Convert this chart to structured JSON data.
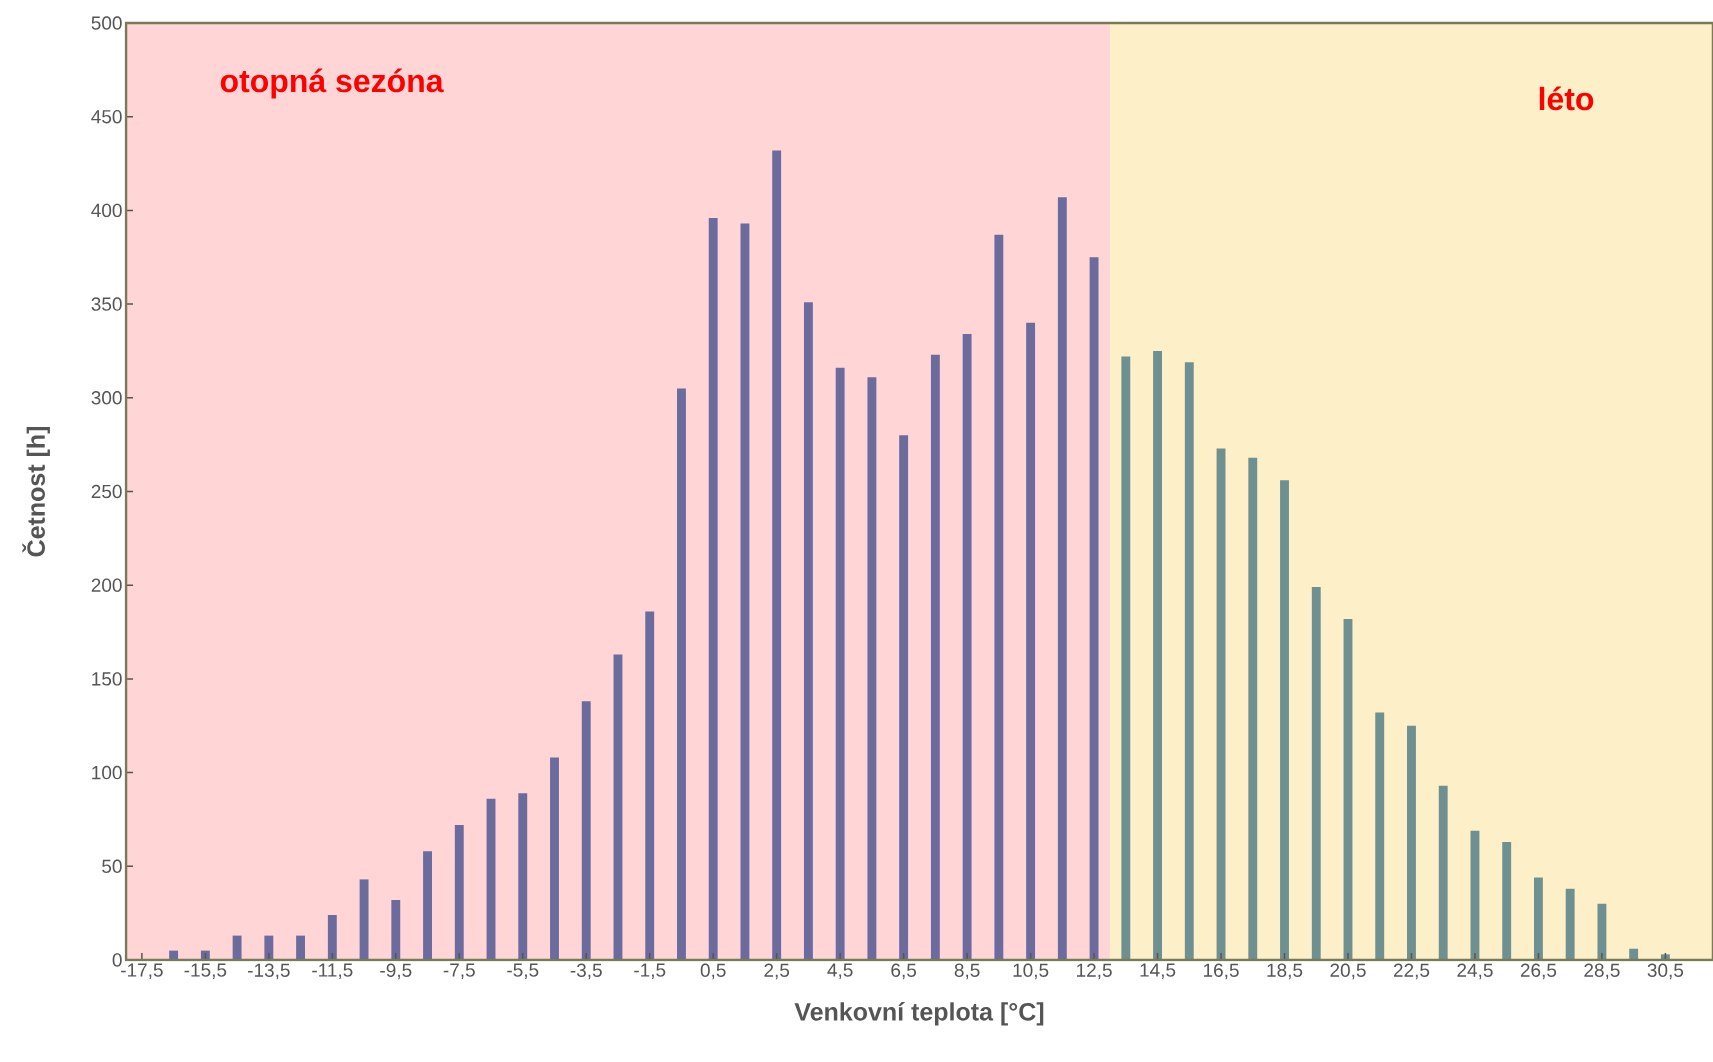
{
  "chart_data": {
    "type": "bar",
    "xlabel": "Venkovní teplota [°C]",
    "ylabel": "Četnost [h]",
    "x": [
      -16.5,
      -15.5,
      -14.5,
      -13.5,
      -12.5,
      -11.5,
      -10.5,
      -9.5,
      -8.5,
      -7.5,
      -6.5,
      -5.5,
      -4.5,
      -3.5,
      -2.5,
      -1.5,
      -0.5,
      0.5,
      1.5,
      2.5,
      3.5,
      4.5,
      5.5,
      6.5,
      7.5,
      8.5,
      9.5,
      10.5,
      11.5,
      12.5,
      13.5,
      14.5,
      15.5,
      16.5,
      17.5,
      18.5,
      19.5,
      20.5,
      21.5,
      22.5,
      23.5,
      24.5,
      25.5,
      26.5,
      27.5,
      28.5,
      29.5,
      30.5
    ],
    "values": [
      5,
      5,
      13,
      13,
      13,
      24,
      43,
      32,
      58,
      72,
      86,
      89,
      108,
      138,
      163,
      186,
      305,
      396,
      393,
      432,
      351,
      316,
      311,
      280,
      323,
      334,
      387,
      340,
      407,
      375,
      322,
      325,
      319,
      273,
      268,
      256,
      199,
      182,
      132,
      125,
      93,
      69,
      63,
      44,
      38,
      30,
      6,
      3
    ],
    "colors": [
      "#6b6b9e",
      "#6b6b9e",
      "#6b6b9e",
      "#6b6b9e",
      "#6b6b9e",
      "#6b6b9e",
      "#6b6b9e",
      "#6b6b9e",
      "#6b6b9e",
      "#6b6b9e",
      "#6b6b9e",
      "#6b6b9e",
      "#6b6b9e",
      "#6b6b9e",
      "#6b6b9e",
      "#6b6b9e",
      "#6b6b9e",
      "#6b6b9e",
      "#6b6b9e",
      "#6b6b9e",
      "#6b6b9e",
      "#6b6b9e",
      "#6b6b9e",
      "#6b6b9e",
      "#6b6b9e",
      "#6b6b9e",
      "#6b6b9e",
      "#6b6b9e",
      "#6b6b9e",
      "#6b6b9e",
      "#6f9090",
      "#6f9090",
      "#6f9090",
      "#6f9090",
      "#6f9090",
      "#6f9090",
      "#6f9090",
      "#6f9090",
      "#6f9090",
      "#6f9090",
      "#6f9090",
      "#6f9090",
      "#6f9090",
      "#6f9090",
      "#6f9090",
      "#6f9090",
      "#6f9090",
      "#6f9090"
    ],
    "xlim": [
      -18,
      32
    ],
    "ylim": [
      0,
      500
    ],
    "xticks": [
      {
        "value": -17.5,
        "label": "-17,5"
      },
      {
        "value": -15.5,
        "label": "-15,5"
      },
      {
        "value": -13.5,
        "label": "-13,5"
      },
      {
        "value": -11.5,
        "label": "-11,5"
      },
      {
        "value": -9.5,
        "label": "-9,5"
      },
      {
        "value": -7.5,
        "label": "-7,5"
      },
      {
        "value": -5.5,
        "label": "-5,5"
      },
      {
        "value": -3.5,
        "label": "-3,5"
      },
      {
        "value": -1.5,
        "label": "-1,5"
      },
      {
        "value": 0.5,
        "label": "0,5"
      },
      {
        "value": 2.5,
        "label": "2,5"
      },
      {
        "value": 4.5,
        "label": "4,5"
      },
      {
        "value": 6.5,
        "label": "6,5"
      },
      {
        "value": 8.5,
        "label": "8,5"
      },
      {
        "value": 10.5,
        "label": "10,5"
      },
      {
        "value": 12.5,
        "label": "12,5"
      },
      {
        "value": 14.5,
        "label": "14,5"
      },
      {
        "value": 16.5,
        "label": "16,5"
      },
      {
        "value": 18.5,
        "label": "18,5"
      },
      {
        "value": 20.5,
        "label": "20,5"
      },
      {
        "value": 22.5,
        "label": "22,5"
      },
      {
        "value": 24.5,
        "label": "24,5"
      },
      {
        "value": 26.5,
        "label": "26,5"
      },
      {
        "value": 28.5,
        "label": "28,5"
      },
      {
        "value": 30.5,
        "label": "30,5"
      }
    ],
    "yticks": [
      0,
      50,
      100,
      150,
      200,
      250,
      300,
      350,
      400,
      450,
      500
    ],
    "bands": [
      {
        "axis": "x",
        "from": -18,
        "to": 13,
        "label": "otopná sezóna",
        "color": "#ffd5d5"
      },
      {
        "axis": "x",
        "from": 13,
        "to": 32,
        "label": "léto",
        "color": "#fdefc8"
      }
    ]
  }
}
